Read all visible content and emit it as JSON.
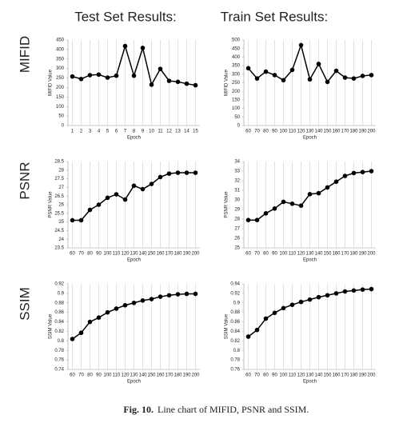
{
  "column_titles": [
    "Test Set Results:",
    "Train Set Results:"
  ],
  "row_labels": [
    "MIFID",
    "PSNR",
    "SSIM"
  ],
  "caption": {
    "label": "Fig. 10.",
    "text": "Line chart of MIFID, PSNR and SSIM."
  },
  "chart_data": [
    {
      "type": "line",
      "xlabel": "Epoch",
      "ylabel": "MIFID Value",
      "categories": [
        "1",
        "2",
        "3",
        "4",
        "5",
        "6",
        "7",
        "8",
        "9",
        "10",
        "11",
        "12",
        "13",
        "14",
        "15"
      ],
      "values": [
        258,
        245,
        265,
        268,
        252,
        262,
        418,
        262,
        408,
        215,
        298,
        235,
        230,
        220,
        212
      ],
      "color": "#000000",
      "ylim": [
        0,
        450
      ],
      "yticks": [
        0,
        50,
        100,
        150,
        200,
        250,
        300,
        350,
        400,
        450
      ],
      "grid": "x"
    },
    {
      "type": "line",
      "xlabel": "Epoch",
      "ylabel": "MIFID Value",
      "categories": [
        "60",
        "70",
        "80",
        "90",
        "100",
        "110",
        "120",
        "130",
        "140",
        "150",
        "160",
        "170",
        "180",
        "190",
        "200"
      ],
      "values": [
        335,
        275,
        315,
        295,
        265,
        325,
        470,
        270,
        360,
        255,
        320,
        280,
        275,
        290,
        295
      ],
      "color": "#000000",
      "ylim": [
        0,
        500
      ],
      "yticks": [
        0,
        50,
        100,
        150,
        200,
        250,
        300,
        350,
        400,
        450,
        500
      ],
      "grid": "x"
    },
    {
      "type": "line",
      "xlabel": "Epoch",
      "ylabel": "PSNR Value",
      "categories": [
        "60",
        "70",
        "80",
        "90",
        "100",
        "110",
        "120",
        "130",
        "140",
        "150",
        "160",
        "170",
        "180",
        "190",
        "200"
      ],
      "values": [
        25.1,
        25.1,
        25.7,
        26.0,
        26.4,
        26.6,
        26.3,
        27.1,
        26.9,
        27.2,
        27.6,
        27.8,
        27.85,
        27.85,
        27.85
      ],
      "color": "#000000",
      "ylim": [
        23.5,
        28.5
      ],
      "yticks": [
        23.5,
        24,
        24.5,
        25,
        25.5,
        26,
        26.5,
        27,
        27.5,
        28,
        28.5
      ],
      "grid": "x"
    },
    {
      "type": "line",
      "xlabel": "Epoch",
      "ylabel": "PSNR Value",
      "categories": [
        "60",
        "70",
        "80",
        "90",
        "100",
        "110",
        "120",
        "130",
        "140",
        "150",
        "160",
        "170",
        "180",
        "190",
        "200"
      ],
      "values": [
        27.9,
        27.9,
        28.6,
        29.1,
        29.8,
        29.6,
        29.4,
        30.6,
        30.7,
        31.3,
        31.9,
        32.5,
        32.8,
        32.9,
        33.0
      ],
      "color": "#000000",
      "ylim": [
        25,
        34
      ],
      "yticks": [
        25,
        26,
        27,
        28,
        29,
        30,
        31,
        32,
        33,
        34
      ],
      "grid": "x"
    },
    {
      "type": "line",
      "xlabel": "Epoch",
      "ylabel": "SSIM Value",
      "categories": [
        "60",
        "70",
        "80",
        "90",
        "100",
        "110",
        "120",
        "130",
        "140",
        "150",
        "160",
        "170",
        "180",
        "190",
        "200"
      ],
      "values": [
        0.804,
        0.817,
        0.84,
        0.849,
        0.86,
        0.868,
        0.875,
        0.88,
        0.885,
        0.888,
        0.893,
        0.896,
        0.898,
        0.899,
        0.899
      ],
      "color": "#000000",
      "ylim": [
        0.74,
        0.92
      ],
      "yticks": [
        0.74,
        0.76,
        0.78,
        0.8,
        0.82,
        0.84,
        0.86,
        0.88,
        0.9,
        0.92
      ],
      "grid": "x"
    },
    {
      "type": "line",
      "xlabel": "Epoch",
      "ylabel": "SSIM Value",
      "categories": [
        "60",
        "70",
        "80",
        "90",
        "100",
        "110",
        "120",
        "130",
        "140",
        "150",
        "160",
        "170",
        "180",
        "190",
        "200"
      ],
      "values": [
        0.829,
        0.843,
        0.867,
        0.879,
        0.889,
        0.896,
        0.902,
        0.907,
        0.912,
        0.916,
        0.92,
        0.924,
        0.926,
        0.928,
        0.929
      ],
      "color": "#000000",
      "ylim": [
        0.76,
        0.94
      ],
      "yticks": [
        0.76,
        0.78,
        0.8,
        0.82,
        0.84,
        0.86,
        0.88,
        0.9,
        0.92,
        0.94
      ],
      "grid": "x"
    }
  ]
}
